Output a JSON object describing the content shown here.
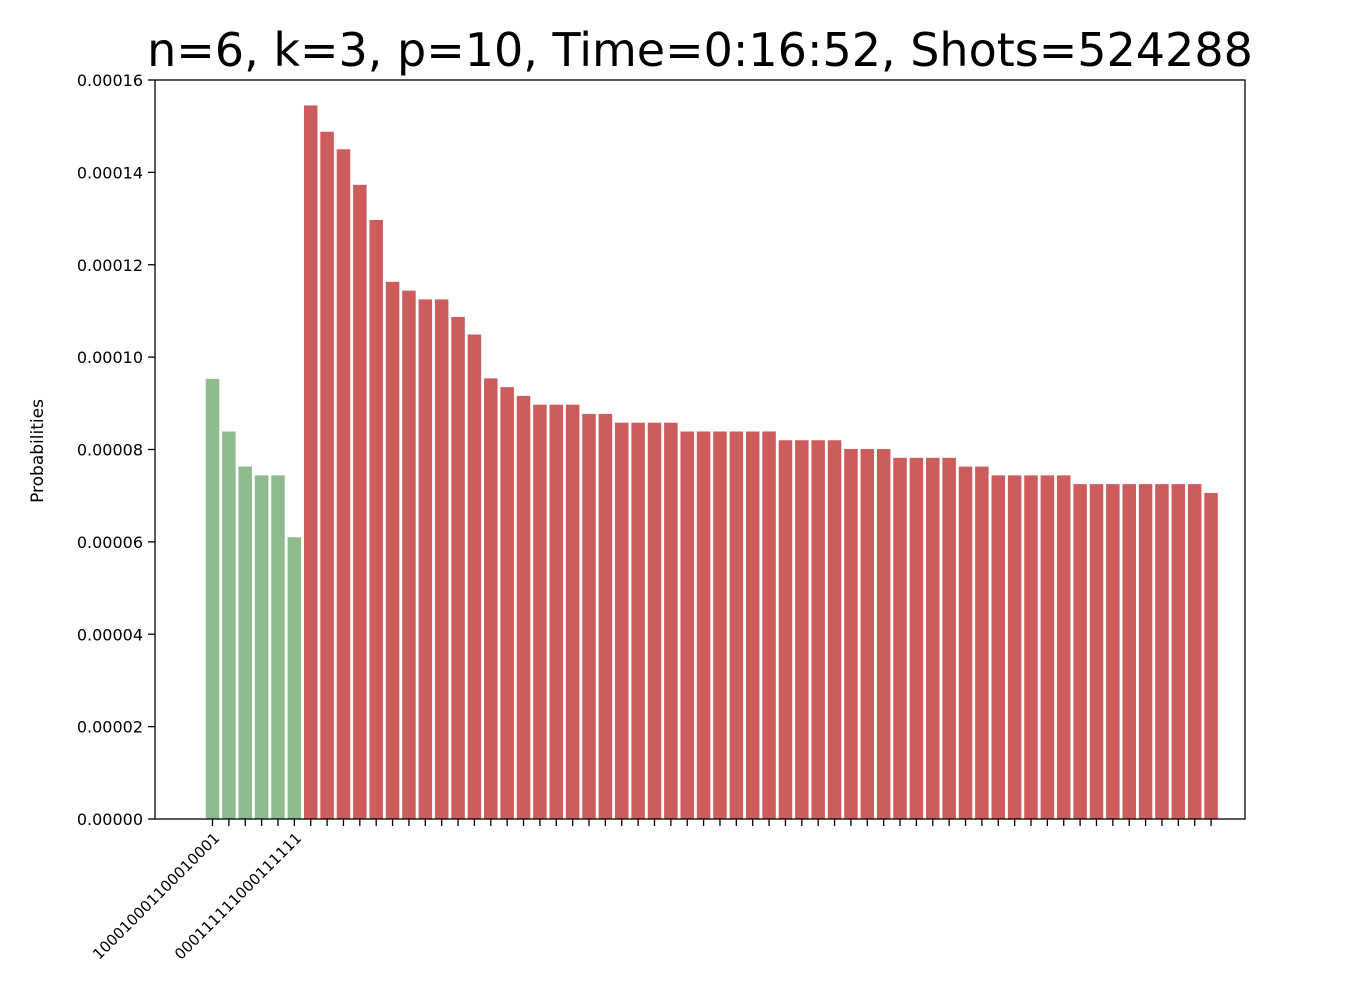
{
  "chart_data": {
    "type": "bar",
    "title": "n=6, k=3, p=10, Time=0:16:52, Shots=524288",
    "xlabel": "",
    "ylabel": "Probabilities",
    "ylim": [
      0,
      0.00016
    ],
    "yticks": [
      "0.00000",
      "0.00002",
      "0.00004",
      "0.00006",
      "0.00008",
      "0.00010",
      "0.00012",
      "0.00014",
      "0.00016"
    ],
    "visible_xtick_labels": [
      "100010001100010001",
      "000111111000111111"
    ],
    "colors": {
      "green": "#8fbc8f",
      "red": "#cd5c5c"
    },
    "green_count": 6,
    "values": [
      9.53e-05,
      8.39e-05,
      7.63e-05,
      7.44e-05,
      7.44e-05,
      6.1e-05,
      0.0001545,
      0.0001488,
      0.000145,
      0.0001373,
      0.0001297,
      0.0001163,
      0.0001144,
      0.0001125,
      0.0001125,
      0.0001087,
      0.0001049,
      9.54e-05,
      9.35e-05,
      9.16e-05,
      8.97e-05,
      8.97e-05,
      8.97e-05,
      8.77e-05,
      8.77e-05,
      8.58e-05,
      8.58e-05,
      8.58e-05,
      8.58e-05,
      8.39e-05,
      8.39e-05,
      8.39e-05,
      8.39e-05,
      8.39e-05,
      8.39e-05,
      8.2e-05,
      8.2e-05,
      8.2e-05,
      8.2e-05,
      8.01e-05,
      8.01e-05,
      8.01e-05,
      7.82e-05,
      7.82e-05,
      7.82e-05,
      7.82e-05,
      7.63e-05,
      7.63e-05,
      7.44e-05,
      7.44e-05,
      7.44e-05,
      7.44e-05,
      7.44e-05,
      7.25e-05,
      7.25e-05,
      7.25e-05,
      7.25e-05,
      7.25e-05,
      7.25e-05,
      7.25e-05,
      7.25e-05,
      7.06e-05
    ]
  }
}
